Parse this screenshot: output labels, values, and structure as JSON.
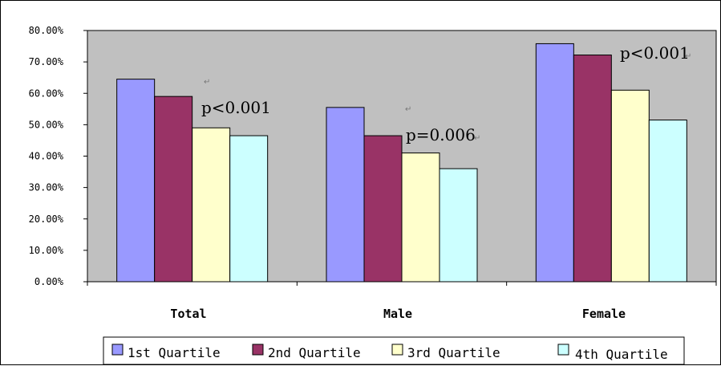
{
  "chart_data": {
    "type": "bar",
    "categories": [
      "Total",
      "Male",
      "Female"
    ],
    "series": [
      {
        "name": "1st Quartile",
        "values": [
          64.5,
          55.5,
          75.8
        ]
      },
      {
        "name": "2nd Quartile",
        "values": [
          59.0,
          46.5,
          72.2
        ]
      },
      {
        "name": "3rd Quartile",
        "values": [
          49.0,
          41.0,
          61.0
        ]
      },
      {
        "name": "4th Quartile",
        "values": [
          46.5,
          36.0,
          51.5
        ]
      }
    ],
    "colors": [
      "#9999ff",
      "#993366",
      "#ffffcc",
      "#ccffff"
    ],
    "plot_background": "#c0c0c0",
    "ylim": [
      0,
      80
    ],
    "yticks": [
      "0.00%",
      "10.00%",
      "20.00%",
      "30.00%",
      "40.00%",
      "50.00%",
      "60.00%",
      "70.00%",
      "80.00%"
    ],
    "annotations": [
      "p<0.001",
      "p=0.006",
      "p<0.001"
    ],
    "legend_position": "bottom",
    "grid": false,
    "title": "",
    "xlabel": "",
    "ylabel": ""
  }
}
